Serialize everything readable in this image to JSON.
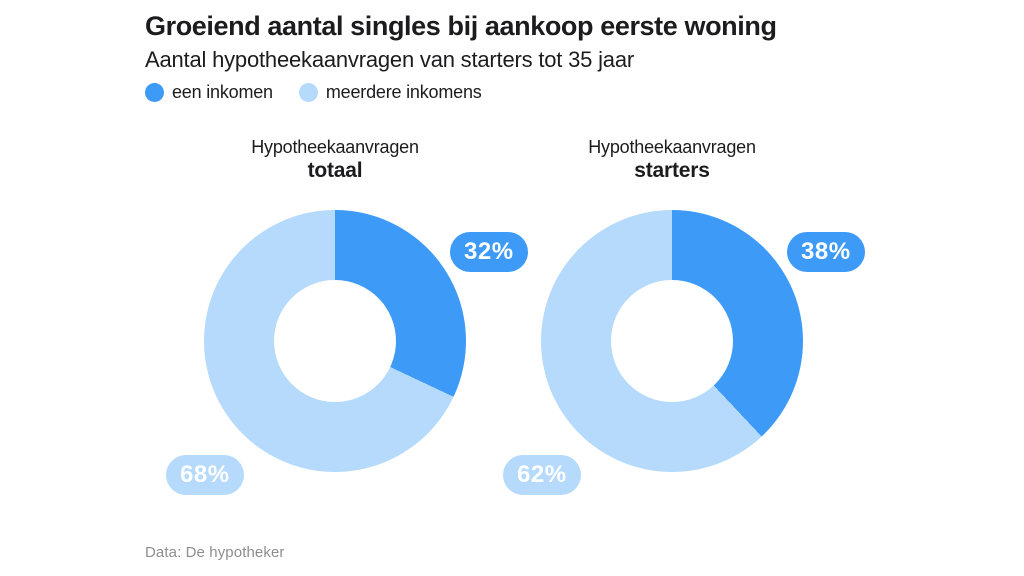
{
  "header": {
    "title": "Groeiend aantal singles bij aankoop eerste woning",
    "subtitle": "Aantal hypotheekaanvragen van starters tot 35 jaar"
  },
  "legend": {
    "items": [
      {
        "label": "een inkomen",
        "color": "#3d9af7"
      },
      {
        "label": "meerdere inkomens",
        "color": "#b5dafc"
      }
    ]
  },
  "colors": {
    "primary": "#3d9af7",
    "secondary": "#b5dafc",
    "pill_text": "#ffffff",
    "text": "#1c1c1e",
    "source_text": "#8e8e8e",
    "background": "#ffffff"
  },
  "charts": [
    {
      "title_line1": "Hypotheekaanvragen",
      "title_line2": "totaal",
      "labels": {
        "primary": "32%",
        "secondary": "68%"
      }
    },
    {
      "title_line1": "Hypotheekaanvragen",
      "title_line2": "starters",
      "labels": {
        "primary": "38%",
        "secondary": "62%"
      }
    }
  ],
  "chart_data": [
    {
      "type": "pie",
      "subtype": "donut",
      "title": "Hypotheekaanvragen totaal",
      "categories": [
        "een inkomen",
        "meerdere inkomens"
      ],
      "values": [
        32,
        68
      ],
      "unit": "%",
      "start_angle_deg": 0,
      "direction": "clockwise",
      "legend_position": "top-left"
    },
    {
      "type": "pie",
      "subtype": "donut",
      "title": "Hypotheekaanvragen starters",
      "categories": [
        "een inkomen",
        "meerdere inkomens"
      ],
      "values": [
        38,
        62
      ],
      "unit": "%",
      "start_angle_deg": 0,
      "direction": "clockwise",
      "legend_position": "top-left"
    }
  ],
  "footer": {
    "source": "Data: De hypotheker"
  }
}
